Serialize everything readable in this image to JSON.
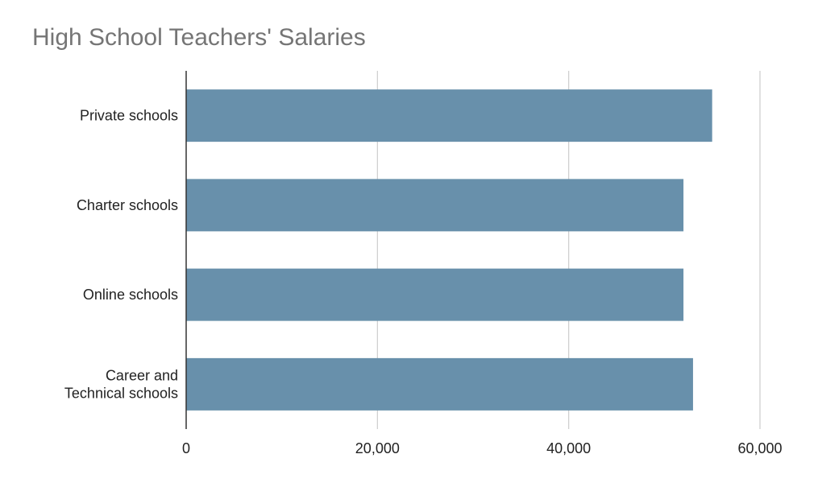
{
  "chart_data": {
    "type": "bar",
    "orientation": "horizontal",
    "title": "High School Teachers' Salaries",
    "xlabel": "",
    "ylabel": "",
    "categories": [
      [
        "Private  schools"
      ],
      [
        "Charter schools"
      ],
      [
        "Online schools"
      ],
      [
        "Career and",
        "Technical schools"
      ]
    ],
    "values": [
      55000,
      52000,
      52000,
      53000
    ],
    "xlim": [
      0,
      60000
    ],
    "x_ticks": [
      "0",
      "20,000",
      "40,000",
      "60,000"
    ],
    "x_tick_values": [
      0,
      20000,
      40000,
      60000
    ],
    "grid": "vertical",
    "legend": "none",
    "bar_color": "#6890ab",
    "grid_color": "#cccccc",
    "axis_color": "#333333"
  }
}
